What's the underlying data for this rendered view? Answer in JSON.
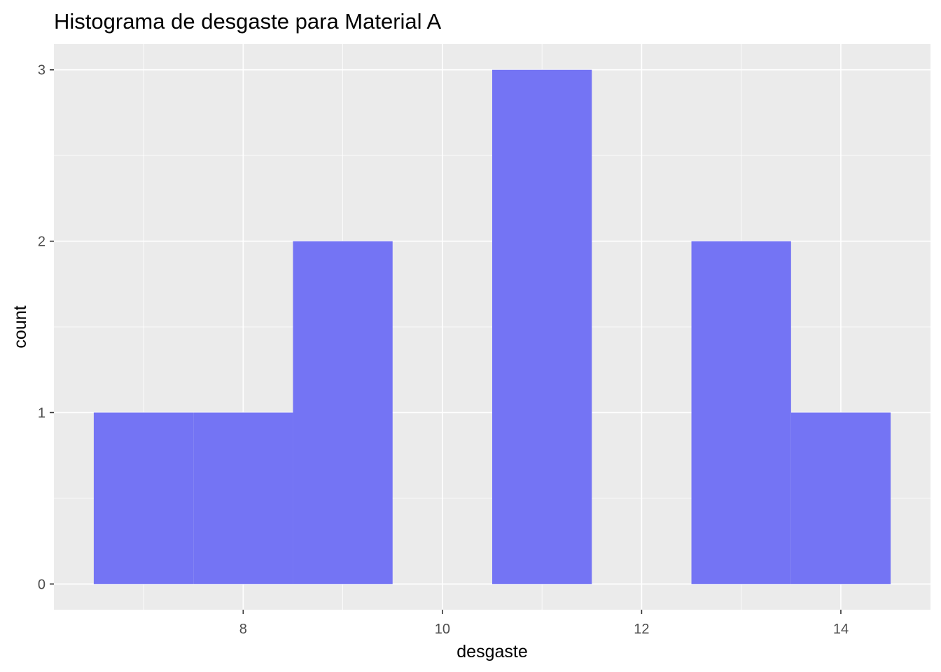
{
  "chart_data": {
    "type": "bar",
    "subtype": "histogram",
    "title": "Histograma de desgaste para Material A",
    "xlabel": "desgaste",
    "ylabel": "count",
    "bins": [
      {
        "x0": 6.5,
        "x1": 7.5,
        "count": 1
      },
      {
        "x0": 7.5,
        "x1": 8.5,
        "count": 1
      },
      {
        "x0": 8.5,
        "x1": 9.5,
        "count": 2
      },
      {
        "x0": 9.5,
        "x1": 10.5,
        "count": 0
      },
      {
        "x0": 10.5,
        "x1": 11.5,
        "count": 3
      },
      {
        "x0": 11.5,
        "x1": 12.5,
        "count": 0
      },
      {
        "x0": 12.5,
        "x1": 13.5,
        "count": 2
      },
      {
        "x0": 13.5,
        "x1": 14.5,
        "count": 1
      }
    ],
    "xlim": [
      6.1,
      14.9
    ],
    "ylim": [
      -0.15,
      3.15
    ],
    "x_ticks": [
      8,
      10,
      12,
      14
    ],
    "y_ticks": [
      0,
      1,
      2,
      3
    ],
    "fill_color": "#7474f4",
    "panel_color": "#ebebeb",
    "grid": true,
    "legend": "none"
  }
}
